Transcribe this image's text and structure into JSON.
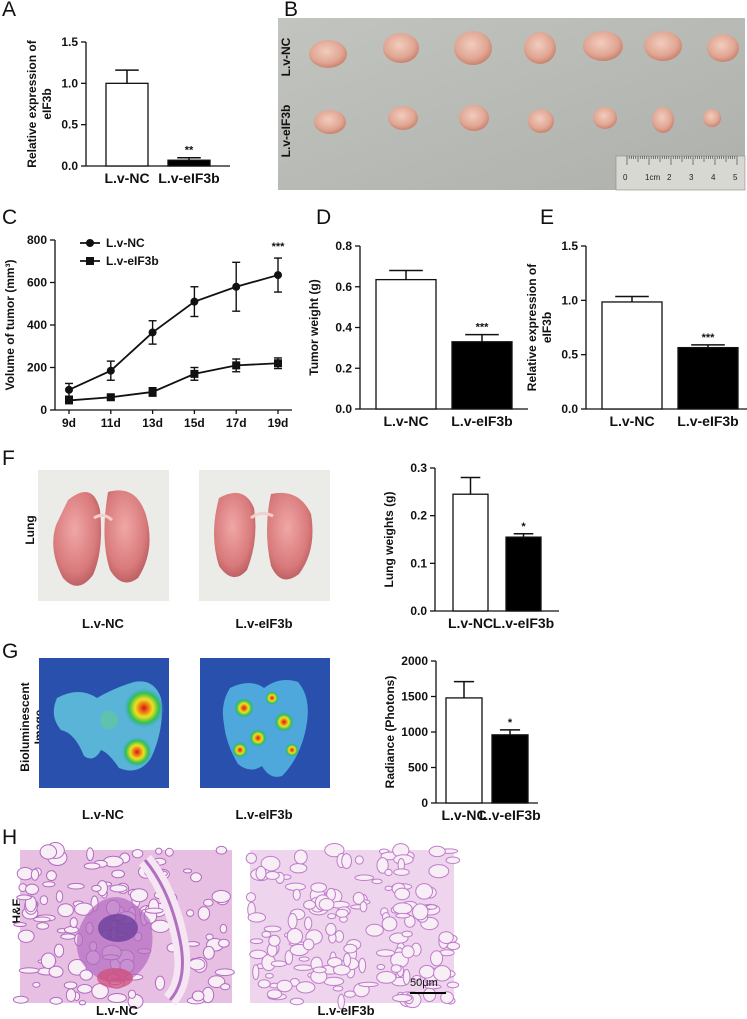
{
  "panels": {
    "A": {
      "letter": "A"
    },
    "B": {
      "letter": "B",
      "row_labels": [
        "L.v-NC",
        "L.v-eIF3b"
      ],
      "ruler_labels": [
        "0",
        "1cm",
        "2",
        "3",
        "4",
        "5"
      ]
    },
    "C": {
      "letter": "C"
    },
    "D": {
      "letter": "D"
    },
    "E": {
      "letter": "E"
    },
    "F": {
      "letter": "F",
      "row_label": "Lung",
      "captions": [
        "L.v-NC",
        "L.v-eIF3b"
      ]
    },
    "G": {
      "letter": "G",
      "row_label_lines": [
        "Bioluminescent",
        "Image"
      ],
      "captions": [
        "L.v-NC",
        "L.v-eIF3b"
      ]
    },
    "H": {
      "letter": "H",
      "row_label": "H&E",
      "captions": [
        "L.v-NC",
        "L.v-eIF3b"
      ],
      "scale_bar": "50μm"
    }
  },
  "colors": {
    "bar_nc": "#ffffff",
    "bar_kd": "#000000",
    "axis": "#111111",
    "bench": "#b9bbb7",
    "tissue": "#e6b0a2",
    "lung": "#d87a80",
    "he_pink": "#d69ad0",
    "biolum_bg": "#2b52b0"
  },
  "chart_data": [
    {
      "id": "A",
      "type": "bar",
      "categories": [
        "L.v-NC",
        "L.v-eIF3b"
      ],
      "values": [
        1.0,
        0.07
      ],
      "errors": [
        0.16,
        0.03
      ],
      "ylabel": "Relative expression of eIF3b",
      "ylim": [
        0,
        1.5
      ],
      "yticks": [
        "0.0",
        "0.5",
        "1.0",
        "1.5"
      ],
      "annotations": [
        "",
        "**"
      ]
    },
    {
      "id": "C",
      "type": "line",
      "x": [
        "9d",
        "11d",
        "13d",
        "15d",
        "17d",
        "19d"
      ],
      "series": [
        {
          "name": "L.v-NC",
          "values": [
            95,
            185,
            365,
            510,
            580,
            635
          ],
          "errors": [
            30,
            45,
            55,
            70,
            115,
            80
          ]
        },
        {
          "name": "L.v-eIF3b",
          "values": [
            45,
            60,
            85,
            170,
            210,
            220
          ],
          "errors": [
            10,
            12,
            20,
            30,
            30,
            25
          ]
        }
      ],
      "ylabel": "Volume of tumor (mm³)",
      "ylim": [
        0,
        800
      ],
      "yticks": [
        "0",
        "200",
        "400",
        "600",
        "800"
      ],
      "annotation": "***",
      "legend": "top-left"
    },
    {
      "id": "D",
      "type": "bar",
      "categories": [
        "L.v-NC",
        "L.v-eIF3b"
      ],
      "values": [
        0.635,
        0.33
      ],
      "errors": [
        0.045,
        0.035
      ],
      "ylabel": "Tumor weight (g)",
      "ylim": [
        0,
        0.8
      ],
      "yticks": [
        "0.0",
        "0.2",
        "0.4",
        "0.6",
        "0.8"
      ],
      "annotations": [
        "",
        "***"
      ]
    },
    {
      "id": "E",
      "type": "bar",
      "categories": [
        "L.v-NC",
        "L.v-eIF3b"
      ],
      "values": [
        0.985,
        0.565
      ],
      "errors": [
        0.05,
        0.025
      ],
      "ylabel": "Relative expression of eIF3b",
      "ylim": [
        0,
        1.5
      ],
      "yticks": [
        "0.0",
        "0.5",
        "1.0",
        "1.5"
      ],
      "annotations": [
        "",
        "***"
      ]
    },
    {
      "id": "F",
      "type": "bar",
      "categories": [
        "L.v-NC",
        "L.v-eIF3b"
      ],
      "values": [
        0.245,
        0.155
      ],
      "errors": [
        0.035,
        0.007
      ],
      "ylabel": "Lung weights (g)",
      "ylim": [
        0,
        0.3
      ],
      "yticks": [
        "0.0",
        "0.1",
        "0.2",
        "0.3"
      ],
      "annotations": [
        "",
        "*"
      ]
    },
    {
      "id": "G",
      "type": "bar",
      "categories": [
        "L.v-NC",
        "L.v-eIF3b"
      ],
      "values": [
        1480,
        960
      ],
      "errors": [
        230,
        70
      ],
      "ylabel": "Radiance (Photons)",
      "ylim": [
        0,
        2000
      ],
      "yticks": [
        "0",
        "500",
        "1000",
        "1500",
        "2000"
      ],
      "annotations": [
        "",
        "*"
      ]
    }
  ]
}
